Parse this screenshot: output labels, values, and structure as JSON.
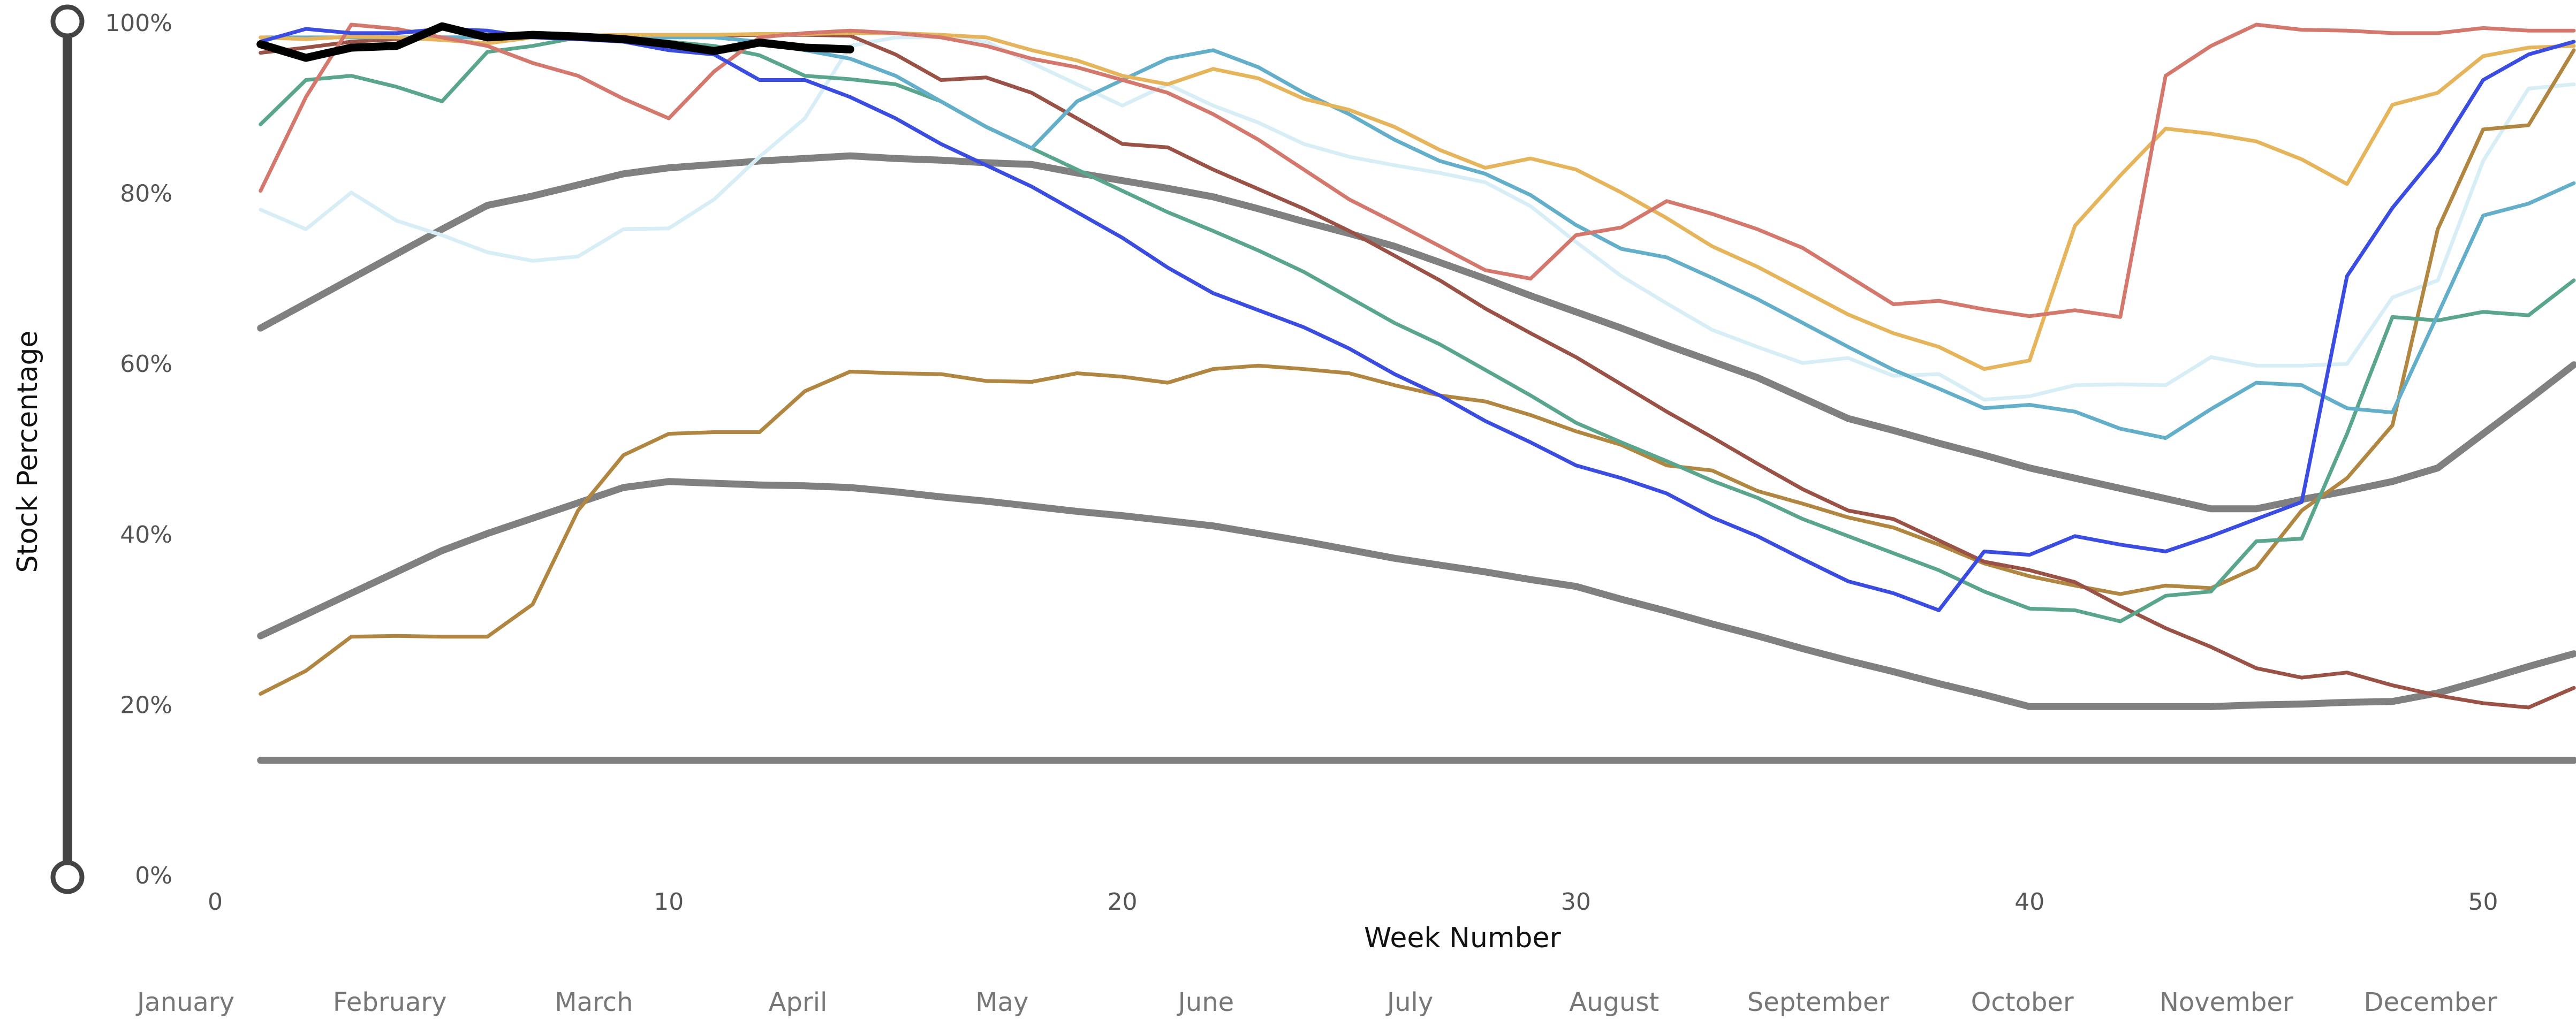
{
  "chart_data": {
    "type": "line",
    "xlabel": "Week Number",
    "ylabel": "Stock Percentage",
    "xlim": [
      0,
      52
    ],
    "ylim": [
      0,
      100
    ],
    "xticks": [
      0,
      10,
      20,
      30,
      40,
      50
    ],
    "yticks": [
      {
        "value": 0,
        "label": "0%"
      },
      {
        "value": 20,
        "label": "20%"
      },
      {
        "value": 40,
        "label": "40%"
      },
      {
        "value": 60,
        "label": "60%"
      },
      {
        "value": 80,
        "label": "80%"
      },
      {
        "value": 100,
        "label": "100%"
      }
    ],
    "grid": false,
    "months": [
      "January",
      "February",
      "March",
      "April",
      "May",
      "June",
      "July",
      "August",
      "September",
      "October",
      "November",
      "December"
    ],
    "x": [
      1,
      2,
      3,
      4,
      5,
      6,
      7,
      8,
      9,
      10,
      11,
      12,
      13,
      14,
      15,
      16,
      17,
      18,
      19,
      20,
      21,
      22,
      23,
      24,
      25,
      26,
      27,
      28,
      29,
      30,
      31,
      32,
      33,
      34,
      35,
      36,
      37,
      38,
      39,
      40,
      41,
      42,
      43,
      44,
      45,
      46,
      47,
      48,
      49,
      50,
      51,
      52
    ],
    "series": [
      {
        "color": "#808080",
        "width": "thick",
        "values": [
          13.7,
          13.7,
          13.7,
          13.7,
          13.7,
          13.7,
          13.7,
          13.7,
          13.7,
          13.7,
          13.7,
          13.7,
          13.7,
          13.7,
          13.7,
          13.7,
          13.7,
          13.7,
          13.7,
          13.7,
          13.7,
          13.7,
          13.7,
          13.7,
          13.7,
          13.7,
          13.7,
          13.7,
          13.7,
          13.7,
          13.7,
          13.7,
          13.7,
          13.7,
          13.7,
          13.7,
          13.7,
          13.7,
          13.7,
          13.7,
          13.7,
          13.7,
          13.7,
          13.7,
          13.7,
          13.7,
          13.7,
          13.7,
          13.7,
          13.7,
          13.7,
          13.7
        ]
      },
      {
        "color": "#808080",
        "width": "thick",
        "values": [
          28.3,
          30.8,
          33.3,
          35.8,
          38.3,
          40.3,
          42.1,
          43.9,
          45.7,
          46.4,
          46.2,
          46,
          45.9,
          45.7,
          45.2,
          44.6,
          44.1,
          43.5,
          42.9,
          42.4,
          41.8,
          41.2,
          40.3,
          39.4,
          38.4,
          37.4,
          36.6,
          35.8,
          34.9,
          34.1,
          32.6,
          31.2,
          29.7,
          28.3,
          26.8,
          25.4,
          24.1,
          22.7,
          21.4,
          20,
          20,
          20,
          20,
          20,
          20.2,
          20.3,
          20.5,
          20.6,
          21.6,
          23.1,
          24.7,
          26.2
        ]
      },
      {
        "color": "#808080",
        "width": "thick",
        "values": [
          64.4,
          67.3,
          70.2,
          73.1,
          76,
          78.8,
          79.9,
          81.2,
          82.5,
          83.2,
          83.6,
          84,
          84.3,
          84.6,
          84.3,
          84.1,
          83.8,
          83.6,
          82.6,
          81.7,
          80.8,
          79.8,
          78.4,
          76.9,
          75.5,
          74,
          72.1,
          70.2,
          68.2,
          66.3,
          64.4,
          62.4,
          60.5,
          58.6,
          56.2,
          53.8,
          52.4,
          50.9,
          49.5,
          48,
          46.8,
          45.6,
          44.4,
          43.2,
          43.2,
          44.3,
          45.3,
          46.4,
          48,
          52,
          56,
          60.1
        ]
      },
      {
        "color": "#d8eef7",
        "width": "thin",
        "values": [
          78.3,
          76,
          80.3,
          77,
          75.3,
          73.3,
          72.3,
          72.8,
          76,
          76.1,
          79.5,
          84.5,
          89,
          97.5,
          98.5,
          98.5,
          98,
          95.5,
          93,
          90.5,
          93,
          90.5,
          88.5,
          86,
          84.5,
          83.5,
          82.6,
          81.5,
          78.7,
          74.5,
          70.5,
          67.3,
          64.2,
          62.2,
          60.3,
          60.9,
          58.8,
          59,
          56,
          56.4,
          57.7,
          57.8,
          57.7,
          61,
          60,
          60,
          60.2,
          68,
          70,
          84,
          92.5,
          93
        ]
      },
      {
        "color": "#b08640",
        "width": "thin",
        "values": [
          21.5,
          24.2,
          28.2,
          28.3,
          28.2,
          28.2,
          32,
          43,
          49.5,
          52,
          52.2,
          52.2,
          57,
          59.3,
          59.1,
          59,
          58.2,
          58.1,
          59.1,
          58.7,
          58,
          59.6,
          60,
          59.6,
          59.1,
          57.7,
          56.5,
          55.8,
          54.2,
          52.3,
          50.7,
          48.3,
          47.7,
          45.3,
          43.8,
          42.2,
          41,
          39,
          36.8,
          35.3,
          34.2,
          33.2,
          34.2,
          33.9,
          36.3,
          43,
          46.8,
          53,
          76,
          87.7,
          88.2,
          97
        ]
      },
      {
        "color": "#9a5246",
        "width": "thin",
        "values": [
          96.7,
          97.3,
          98,
          98.3,
          98.5,
          98.5,
          98.5,
          98.6,
          98.6,
          98.7,
          98.7,
          98.8,
          98.8,
          98.7,
          96.5,
          93.5,
          93.8,
          92,
          89,
          86,
          85.6,
          83,
          80.7,
          78.4,
          75.8,
          72.9,
          70,
          66.7,
          63.8,
          61,
          57.8,
          54.6,
          51.6,
          48.5,
          45.5,
          43,
          42,
          39.5,
          37,
          36,
          34.6,
          31.8,
          29.2,
          27,
          24.5,
          23.4,
          24,
          22.5,
          21.3,
          20.4,
          19.9,
          22.2
        ]
      },
      {
        "color": "#5aa68c",
        "width": "thin",
        "values": [
          88.3,
          93.5,
          94,
          92.7,
          91,
          96.8,
          97.5,
          98.5,
          98.5,
          98,
          97.5,
          96.4,
          94,
          93.6,
          93,
          91,
          88,
          85.5,
          83,
          80.5,
          78,
          75.8,
          73.5,
          71,
          68,
          65,
          62.5,
          59.5,
          56.5,
          53.3,
          51,
          48.8,
          46.5,
          44.5,
          42,
          40,
          38,
          36,
          33.5,
          31.5,
          31.3,
          30,
          33,
          33.5,
          39.4,
          39.7,
          52,
          65.7,
          65.3,
          66.3,
          65.9,
          70
        ]
      },
      {
        "color": "#63aec8",
        "width": "thin",
        "values": [
          98.5,
          98.5,
          98.5,
          98.5,
          98.5,
          98.5,
          98.5,
          98.5,
          98.5,
          98.5,
          98.5,
          98,
          97,
          96,
          94,
          91,
          88,
          85.5,
          91,
          93.5,
          96,
          97,
          95,
          92,
          89.5,
          86.5,
          84,
          82.5,
          80,
          76.5,
          73.7,
          72.7,
          70.3,
          67.8,
          65,
          62.2,
          59.5,
          57.3,
          55,
          55.4,
          54.6,
          52.6,
          51.5,
          54.9,
          58,
          57.7,
          55,
          54.5,
          66,
          77.6,
          79,
          81.4
        ]
      },
      {
        "color": "#e6b45a",
        "width": "thin",
        "values": [
          98.5,
          98.3,
          98.6,
          98.5,
          98.2,
          97.8,
          98.5,
          98.7,
          98.8,
          98.8,
          98.8,
          98.9,
          98.9,
          99,
          99,
          98.8,
          98.5,
          97,
          95.8,
          94,
          93,
          94.8,
          93.7,
          91.3,
          90,
          88,
          85.3,
          83.2,
          84.3,
          83,
          80.3,
          77.3,
          74,
          71.6,
          68.8,
          66,
          63.8,
          62.2,
          59.6,
          60.6,
          76.4,
          82.3,
          87.8,
          87.2,
          86.3,
          84.2,
          81.3,
          90.6,
          92,
          96.3,
          97.3,
          97.5
        ]
      },
      {
        "color": "#d4786e",
        "width": "thin",
        "values": [
          80.5,
          91.5,
          100,
          99.5,
          98.5,
          97.5,
          95.5,
          94,
          91.3,
          89,
          94.5,
          98.5,
          99,
          99.3,
          99,
          98.5,
          97.5,
          96,
          95,
          93.5,
          92,
          89.5,
          86.5,
          83,
          79.5,
          76.8,
          74,
          71.2,
          70.2,
          75.3,
          76.2,
          79.3,
          77.8,
          76,
          73.8,
          70.5,
          67.2,
          67.6,
          66.6,
          65.8,
          66.5,
          65.7,
          94,
          97.5,
          100,
          99.4,
          99.3,
          99,
          99,
          99.6,
          99.3,
          99.3
        ]
      },
      {
        "color": "#3a4de0",
        "width": "thin",
        "values": [
          98,
          99.5,
          99,
          99,
          99.5,
          99.3,
          98.5,
          98.3,
          98,
          97,
          96.5,
          93.5,
          93.5,
          91.5,
          89,
          86,
          83.5,
          81,
          78,
          75,
          71.5,
          68.5,
          66.5,
          64.5,
          62,
          59,
          56.5,
          53.5,
          51,
          48.3,
          46.8,
          45,
          42.2,
          40,
          37.3,
          34.7,
          33.3,
          31.3,
          38.2,
          37.8,
          40,
          39,
          38.2,
          40,
          42,
          44,
          70.5,
          78.5,
          85,
          93.5,
          96.5,
          98
        ]
      },
      {
        "color": "#000000",
        "width": "bold",
        "values": [
          97.7,
          96.1,
          97.3,
          97.5,
          99.8,
          98.5,
          98.8,
          98.6,
          98.3,
          97.7,
          96.9,
          97.9,
          97.3,
          97.1,
          null,
          null,
          null,
          null,
          null,
          null,
          null,
          null,
          null,
          null,
          null,
          null,
          null,
          null,
          null,
          null,
          null,
          null,
          null,
          null,
          null,
          null,
          null,
          null,
          null,
          null,
          null,
          null,
          null,
          null,
          null,
          null,
          null,
          null,
          null,
          null,
          null,
          null
        ]
      }
    ]
  }
}
